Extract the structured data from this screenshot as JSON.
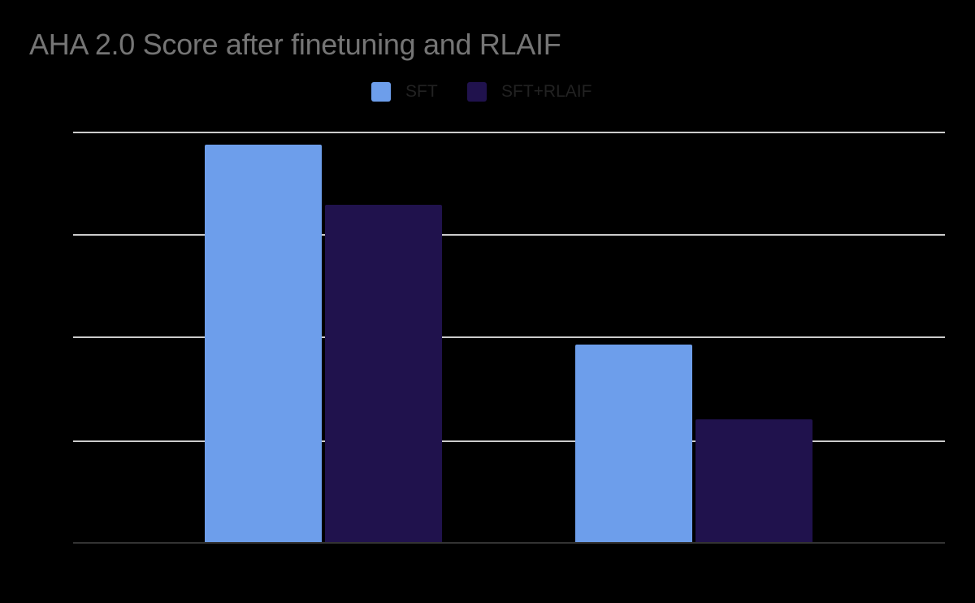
{
  "title": "AHA 2.0 Score after finetuning and RLAIF",
  "legend": [
    {
      "label": "SFT",
      "color": "#6d9eeb"
    },
    {
      "label": "SFT+RLAIF",
      "color": "#20124d"
    }
  ],
  "colors": {
    "background": "#000000",
    "title": "#757575",
    "gridline": "#cccccc",
    "baseline": "#333333"
  },
  "chart_data": {
    "type": "bar",
    "title": "AHA 2.0 Score after finetuning and RLAIF",
    "xlabel": "",
    "ylabel": "",
    "categories": [
      "",
      ""
    ],
    "series": [
      {
        "name": "SFT",
        "color": "#6d9eeb",
        "values": [
          3.87,
          1.93
        ]
      },
      {
        "name": "SFT+RLAIF",
        "color": "#20124d",
        "values": [
          3.29,
          1.2
        ]
      }
    ],
    "ylim": [
      0,
      4
    ],
    "yticks": [
      0,
      1,
      2,
      3,
      4
    ],
    "grid": true,
    "legend_position": "top",
    "note": "Axis tick labels and category labels are not visible (rendered black on black); values expressed in gridline units"
  }
}
